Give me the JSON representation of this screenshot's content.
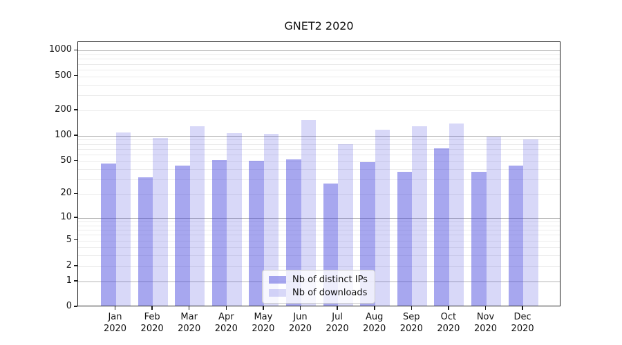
{
  "chart_data": {
    "type": "bar",
    "title": "GNET2 2020",
    "categories": [
      "Jan 2020",
      "Feb 2020",
      "Mar 2020",
      "Apr 2020",
      "May 2020",
      "Jun 2020",
      "Jul 2020",
      "Aug 2020",
      "Sep 2020",
      "Oct 2020",
      "Nov 2020",
      "Dec 2020"
    ],
    "series": [
      {
        "name": "Nb of distinct IPs",
        "color": "rgba(60,60,220,0.45)",
        "values": [
          45,
          31,
          43,
          50,
          49,
          51,
          26,
          47,
          36,
          69,
          36,
          43
        ]
      },
      {
        "name": "Nb of downloads",
        "color": "rgba(60,60,220,0.20)",
        "values": [
          106,
          90,
          125,
          103,
          101,
          148,
          76,
          113,
          125,
          135,
          94,
          88
        ]
      }
    ],
    "xlabel": "",
    "ylabel": "",
    "yscale": "log1p",
    "ylim": [
      0,
      1260
    ],
    "yticks": [
      0,
      1,
      2,
      5,
      10,
      20,
      50,
      100,
      200,
      500,
      1000
    ],
    "major_grid_values": [
      1,
      10,
      100,
      1000
    ],
    "grid": "both",
    "legend_position": "lower-center",
    "colors": {
      "axis": "#1c1c1c",
      "major_grid": "#b3b3b3",
      "minor_grid": "#ebebeb",
      "bar_base": "#3c3cdc",
      "background": "#ffffff"
    }
  }
}
